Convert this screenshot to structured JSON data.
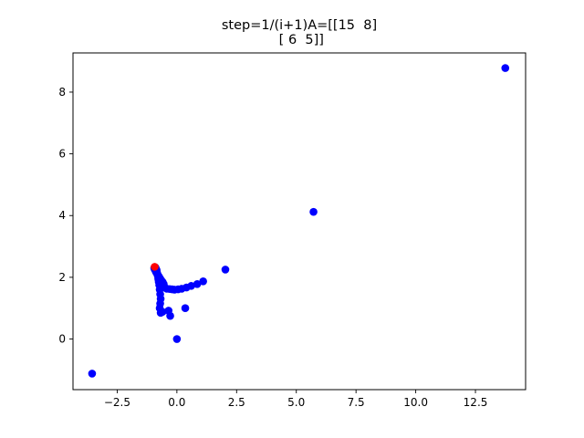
{
  "chart_data": {
    "type": "scatter",
    "title_lines": [
      "step=1/(i+1)A=[[15  8]",
      " [ 6  5]]"
    ],
    "xlabel": "",
    "ylabel": "",
    "xlim": [
      -4.35,
      14.6
    ],
    "ylim": [
      -1.64,
      9.27
    ],
    "grid": false,
    "xticks": [
      -2.5,
      0.0,
      2.5,
      5.0,
      7.5,
      10.0,
      12.5
    ],
    "xtick_labels": [
      "−2.5",
      "0.0",
      "2.5",
      "5.0",
      "7.5",
      "10.0",
      "12.5"
    ],
    "yticks": [
      0,
      2,
      4,
      6,
      8
    ],
    "ytick_labels": [
      "0",
      "2",
      "4",
      "6",
      "8"
    ],
    "series": [
      {
        "color": "#0000ff",
        "x": [
          0.0,
          -3.55,
          13.75,
          5.72,
          2.03,
          1.1,
          0.85,
          0.6,
          0.4,
          0.2,
          0.05,
          -0.1,
          -0.2,
          -0.3,
          -0.42,
          -0.5,
          -0.55,
          0.35,
          -0.35,
          -0.28,
          -0.6,
          -0.68,
          -0.72,
          -0.7,
          -0.68,
          -0.7,
          -0.72,
          -0.74,
          -0.76,
          -0.78,
          -0.8,
          -0.82,
          -0.84,
          -0.86,
          -0.88,
          -0.9,
          -0.92,
          -0.55,
          -0.6,
          -0.65,
          -0.7,
          -0.75,
          -0.8,
          -0.85,
          -0.88,
          -0.9,
          -0.93,
          -0.95,
          -0.9,
          -0.88,
          -0.85
        ],
        "y": [
          0.0,
          -1.12,
          8.78,
          4.12,
          2.25,
          1.87,
          1.78,
          1.72,
          1.67,
          1.63,
          1.61,
          1.6,
          1.61,
          1.62,
          1.63,
          1.66,
          1.72,
          1.0,
          0.92,
          0.75,
          0.88,
          0.85,
          1.0,
          1.15,
          1.3,
          1.45,
          1.6,
          1.75,
          1.85,
          1.95,
          2.05,
          2.12,
          2.18,
          2.22,
          2.26,
          2.28,
          2.3,
          1.78,
          1.85,
          1.9,
          1.96,
          2.02,
          2.08,
          2.14,
          2.18,
          2.22,
          2.26,
          2.3,
          2.32,
          2.28,
          2.24
        ]
      },
      {
        "color": "#ff0000",
        "x": [
          -0.93
        ],
        "y": [
          2.34
        ]
      }
    ]
  }
}
